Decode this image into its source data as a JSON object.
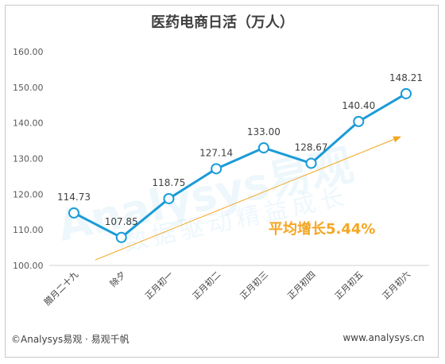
{
  "chart_data": {
    "type": "line",
    "title": "医药电商日活（万人）",
    "categories": [
      "腊月二十九",
      "除夕",
      "正月初一",
      "正月初二",
      "正月初三",
      "正月初四",
      "正月初五",
      "正月初六"
    ],
    "series": [
      {
        "values": [
          114.73,
          107.85,
          118.75,
          127.14,
          133.0,
          128.67,
          140.4,
          148.21
        ]
      }
    ],
    "data_labels": [
      "114.73",
      "107.85",
      "118.75",
      "127.14",
      "133.00",
      "128.67",
      "140.40",
      "148.21"
    ],
    "y_ticks": [
      "100.00",
      "110.00",
      "120.00",
      "130.00",
      "140.00",
      "150.00",
      "160.00"
    ],
    "ylim": [
      100,
      160
    ],
    "grid": false,
    "annotation": "平均增长5.44%",
    "line_color": "#1a9bd7",
    "trend_color": "#f5a623",
    "annotation_color": "#f5a623"
  },
  "watermark": {
    "brand": "Analysys易观",
    "slogan": "数据驱动精益成长"
  },
  "footer": {
    "left": "©Analysys易观 · 易观千帆",
    "right": "www.analysys.cn"
  }
}
